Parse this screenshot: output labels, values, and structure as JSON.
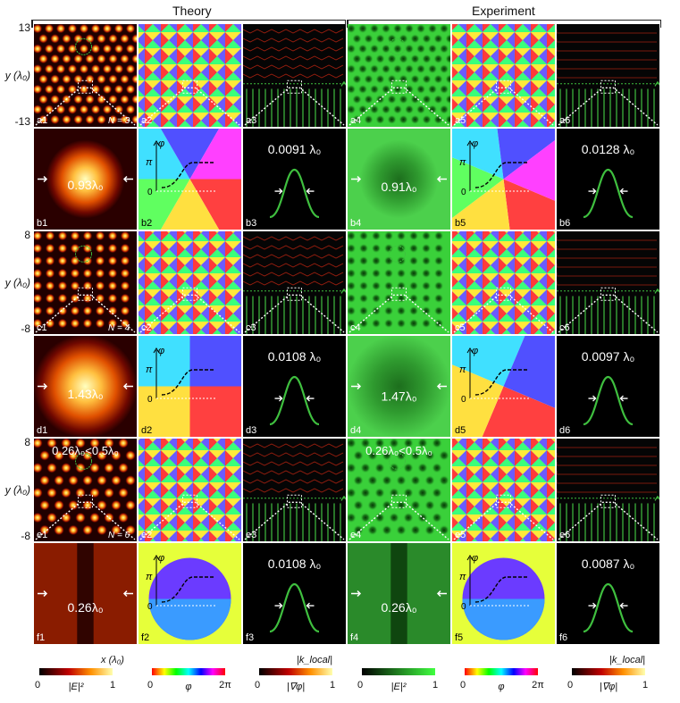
{
  "headers": {
    "theory": "Theory",
    "experiment": "Experiment"
  },
  "y_axis": {
    "label": "y (λ₀)",
    "ticks": [
      [
        "13",
        "-13"
      ],
      [
        "8",
        "-8"
      ],
      [
        "8",
        "-8"
      ]
    ]
  },
  "x_axis_label": "x (λ₀)",
  "panels": {
    "a": [
      "a1",
      "a2",
      "a3",
      "a4",
      "a5",
      "a6"
    ],
    "b": [
      "b1",
      "b2",
      "b3",
      "b4",
      "b5",
      "b6"
    ],
    "c": [
      "c1",
      "c2",
      "c3",
      "c4",
      "c5",
      "c6"
    ],
    "d": [
      "d1",
      "d2",
      "d3",
      "d4",
      "d5",
      "d6"
    ],
    "e": [
      "e1",
      "e2",
      "e3",
      "e4",
      "e5",
      "e6"
    ],
    "f": [
      "f1",
      "f2",
      "f3",
      "f4",
      "f5",
      "f6"
    ]
  },
  "n_labels": {
    "a": "N = 3",
    "c": "N = 4",
    "e": "N = 6"
  },
  "intensity_widths": {
    "b1": "0.93λ₀",
    "b4": "0.91λ₀",
    "d1": "1.43λ₀",
    "d4": "1.47λ₀",
    "f1": "0.26λ₀",
    "f4": "0.26λ₀"
  },
  "kgrad_widths": {
    "b3": "0.0091 λ₀",
    "b6": "0.0128 λ₀",
    "d3": "0.0108 λ₀",
    "d6": "0.0097 λ₀",
    "f3": "0.0108 λ₀",
    "f6": "0.0087 λ₀"
  },
  "e_annotation": "0.26λ₀<0.5λ₀",
  "phase_inset": {
    "pi": "π",
    "zero": "0",
    "phi": "φ"
  },
  "colorbars": [
    {
      "min": "0",
      "max": "1",
      "label": "|E|²",
      "top_label": "x (λ₀)",
      "cmap": "hot"
    },
    {
      "min": "0",
      "max": "2π",
      "label": "φ",
      "top_label": "",
      "cmap": "hsv"
    },
    {
      "min": "0",
      "max": "1",
      "label": "|∇φ|",
      "top_label": "|k_local|",
      "cmap": "hot"
    },
    {
      "min": "0",
      "max": "1",
      "label": "|E|²",
      "top_label": "",
      "cmap": "green"
    },
    {
      "min": "0",
      "max": "2π",
      "label": "φ",
      "top_label": "",
      "cmap": "hsv"
    },
    {
      "min": "0",
      "max": "1",
      "label": "|∇φ|",
      "top_label": "|k_local|",
      "cmap": "hot"
    }
  ],
  "colors": {
    "intensity_hot": "#ffcc33",
    "intensity_green": "#33cc33",
    "kcurve": "#3fbf3f",
    "guide": "#ffffff"
  }
}
